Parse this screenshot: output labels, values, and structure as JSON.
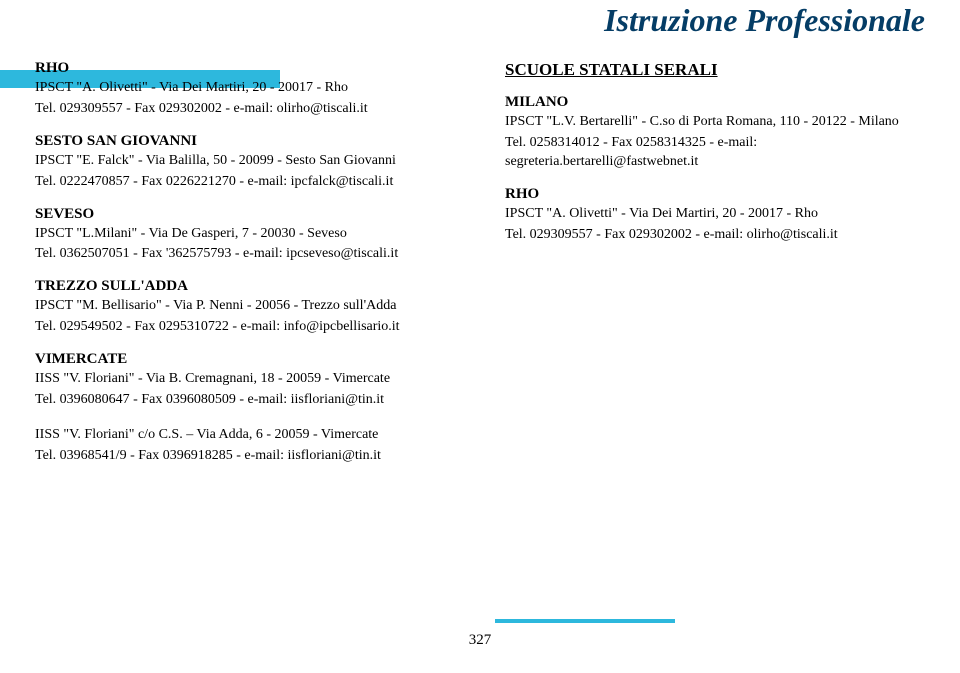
{
  "title": "Istruzione Professionale",
  "page_number": "327",
  "left_column": [
    {
      "city": "RHO",
      "lines": [
        "IPSCT \"A. Olivetti\" - Via Dei Martiri, 20  - 20017 - Rho",
        "Tel. 029309557 - Fax 029302002 - e-mail: olirho@tiscali.it"
      ]
    },
    {
      "city": "SESTO SAN GIOVANNI",
      "lines": [
        "IPSCT \"E. Falck\" - Via Balilla, 50  - 20099 - Sesto San Giovanni",
        "Tel. 0222470857 - Fax 0226221270 - e-mail: ipcfalck@tiscali.it"
      ]
    },
    {
      "city": "SEVESO",
      "lines": [
        "IPSCT \"L.Milani\" - Via De Gasperi, 7  - 20030 - Seveso",
        "Tel. 0362507051 - Fax '362575793 - e-mail: ipcseveso@tiscali.it"
      ]
    },
    {
      "city": "TREZZO SULL'ADDA",
      "lines": [
        "IPSCT \"M. Bellisario\" - Via P. Nenni  - 20056 - Trezzo sull'Adda",
        "Tel. 029549502 - Fax 0295310722 - e-mail: info@ipcbellisario.it"
      ]
    },
    {
      "city": "VIMERCATE",
      "lines": [
        "IISS \"V. Floriani\" - Via B. Cremagnani, 18  - 20059 - Vimercate",
        "Tel. 0396080647 - Fax 0396080509 - e-mail: iisfloriani@tin.it"
      ]
    },
    {
      "city": "",
      "lines": [
        "IISS \"V. Floriani\" c/o C.S. – Via Adda, 6  - 20059 - Vimercate",
        "Tel. 03968541/9 - Fax 0396918285 - e-mail: iisfloriani@tin.it"
      ]
    }
  ],
  "right_section_title": "SCUOLE STATALI SERALI",
  "right_column": [
    {
      "city": "MILANO",
      "lines": [
        "IPSCT \"L.V. Bertarelli\" - C.so di Porta Romana, 110  - 20122 - Milano",
        "Tel. 0258314012 - Fax 0258314325 - e-mail: segreteria.bertarelli@fastwebnet.it"
      ]
    },
    {
      "city": "RHO",
      "lines": [
        "IPSCT \"A. Olivetti\" - Via Dei Martiri, 20  - 20017 - Rho",
        "Tel. 029309557 - Fax 029302002 - e-mail: olirho@tiscali.it"
      ]
    }
  ]
}
